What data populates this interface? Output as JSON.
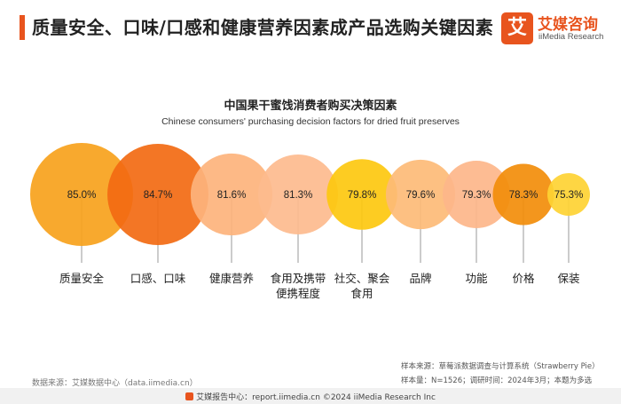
{
  "header": {
    "title": "质量安全、口味/口感和健康营养因素成产品选购关键因素"
  },
  "logo": {
    "mark": "艾",
    "name_cn": "艾媒咨询",
    "name_en": "iiMedia Research",
    "brand_color": "#e8541e"
  },
  "chart_data": {
    "type": "bubble",
    "title": "中国果干蜜饯消费者购买决策因素",
    "subtitle": "Chinese consumers' purchasing decision factors for dried fruit preserves",
    "categories": [
      "质量安全",
      "口感、口味",
      "健康营养",
      "食用及携带\n便携程度",
      "社交、聚会\n食用",
      "品牌",
      "功能",
      "价格",
      "保装"
    ],
    "values": [
      85.0,
      84.7,
      81.6,
      81.3,
      79.8,
      79.6,
      79.3,
      78.3,
      75.3
    ],
    "value_labels": [
      "85.0%",
      "84.7%",
      "81.6%",
      "81.3%",
      "79.8%",
      "79.6%",
      "79.3%",
      "78.3%",
      "75.3%"
    ],
    "colors": [
      "#f7a21c",
      "#f26a12",
      "#fdb37c",
      "#fdbb8e",
      "#fdc80f",
      "#fdbb77",
      "#fdb68a",
      "#f28d0a",
      "#fed233"
    ],
    "unit": "%"
  },
  "sources": {
    "left": "数据来源：艾媒数据中心（data.iimedia.cn）",
    "right_line1": "样本来源：草莓派数据调查与计算系统（Strawberry Pie）",
    "right_line2": "样本量：N=1526；调研时间：2024年3月；本题为多选"
  },
  "footer": {
    "text": "艾媒报告中心：report.iimedia.cn     ©2024  iiMedia Research Inc"
  }
}
